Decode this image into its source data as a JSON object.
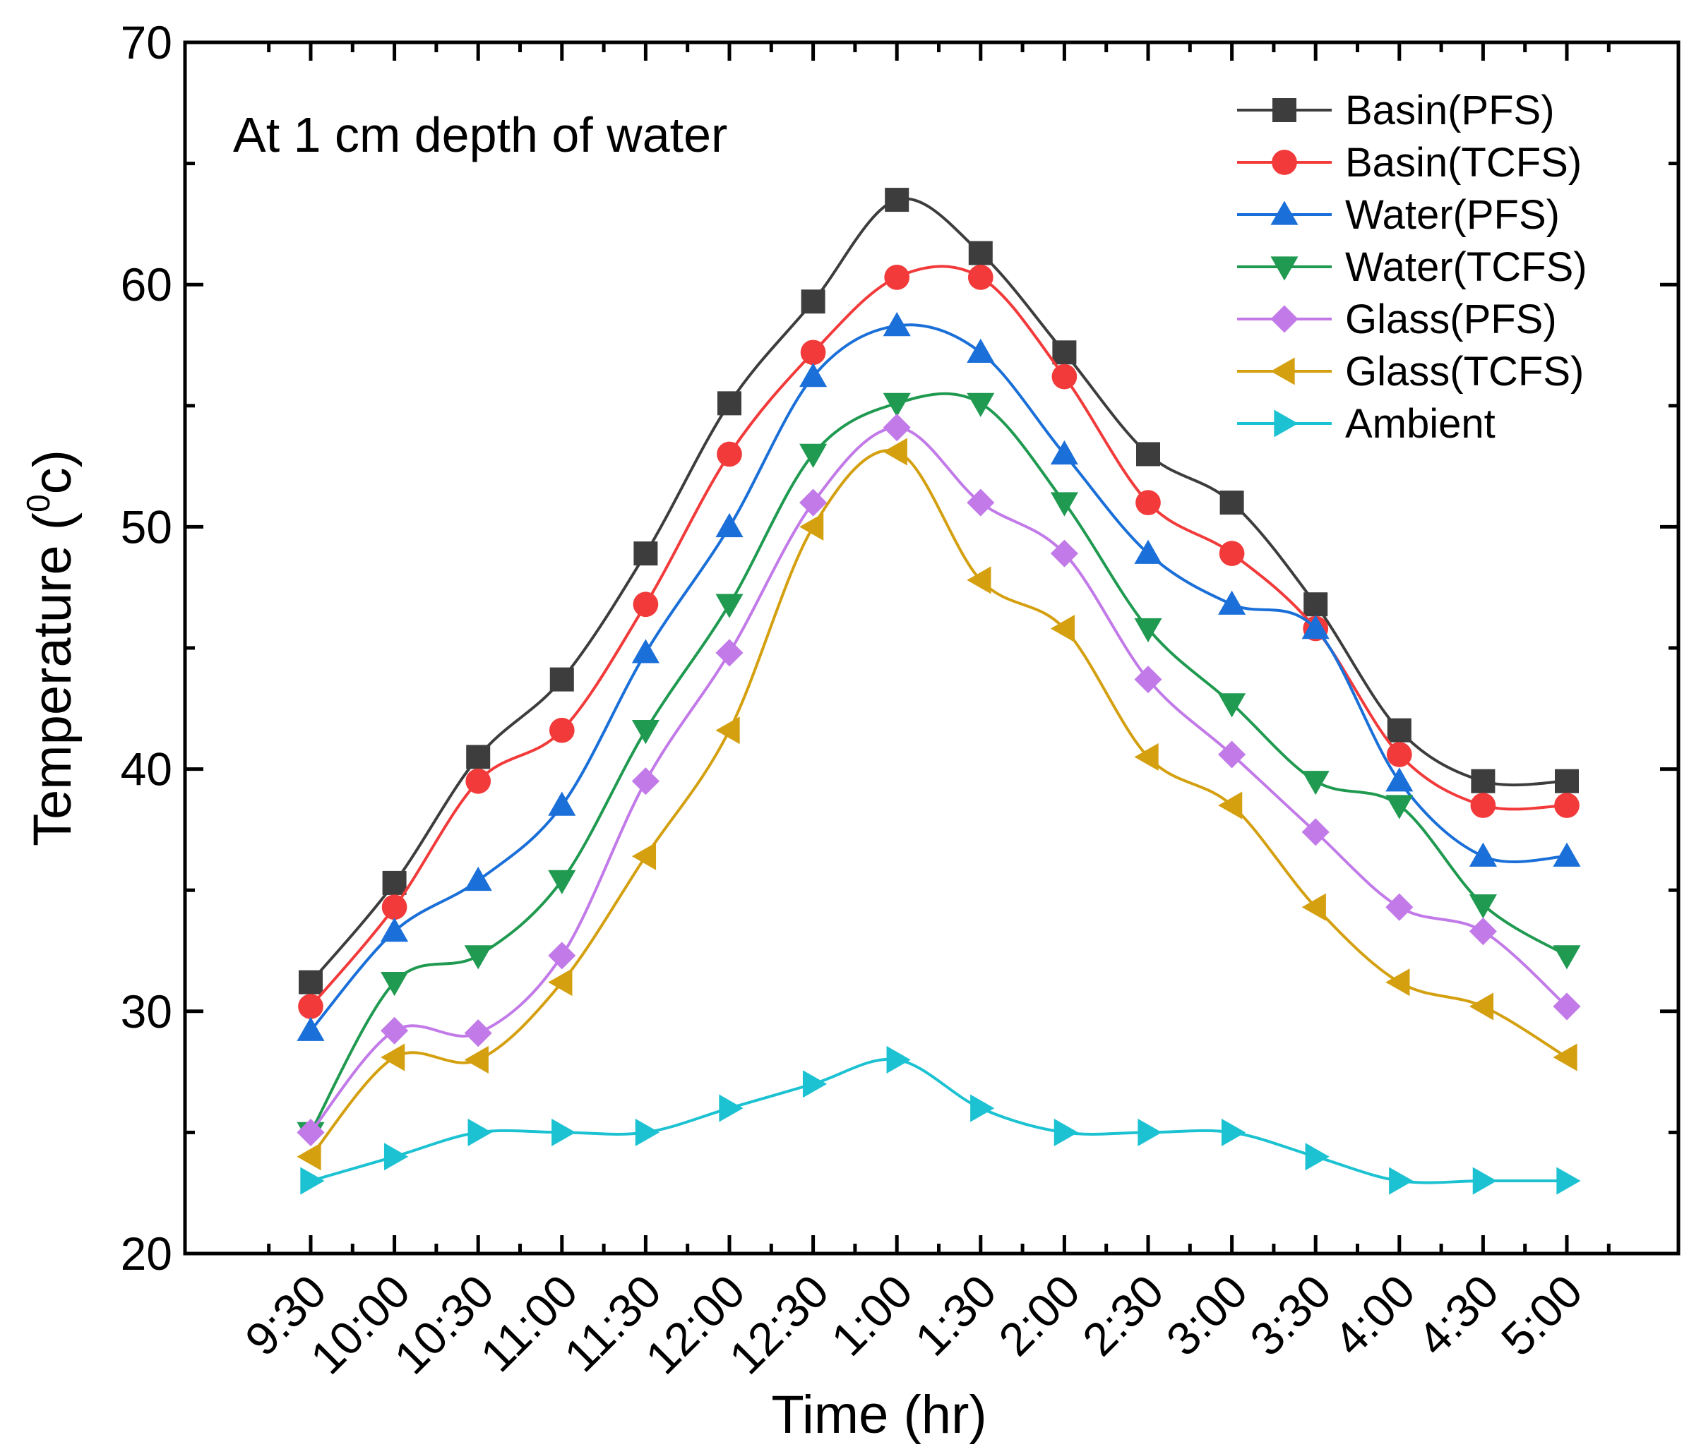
{
  "chart_data": {
    "type": "line",
    "annotation": "At 1 cm depth of water",
    "xlabel": "Time (hr)",
    "ylabel": "Temperature (",
    "ylabel_sup": "0",
    "ylabel_end": "c)",
    "ylim": [
      20,
      70
    ],
    "yticks": [
      20,
      30,
      40,
      50,
      60,
      70
    ],
    "categories": [
      "9:30",
      "10:00",
      "10:30",
      "11:00",
      "11:30",
      "12:00",
      "12:30",
      "1:00",
      "1:30",
      "2:00",
      "2:30",
      "3:00",
      "3:30",
      "4:00",
      "4:30",
      "5:00"
    ],
    "legend_position": "top-right",
    "series": [
      {
        "name": "Basin(PFS)",
        "color": "#3d3d3d",
        "marker": "square",
        "values": [
          31.2,
          35.3,
          40.5,
          43.7,
          48.9,
          55.1,
          59.3,
          63.5,
          61.3,
          57.2,
          53.0,
          51.0,
          46.8,
          41.6,
          39.5,
          39.5
        ]
      },
      {
        "name": "Basin(TCFS)",
        "color": "#f23a3a",
        "marker": "circle",
        "values": [
          30.2,
          34.3,
          39.5,
          41.6,
          46.8,
          53.0,
          57.2,
          60.3,
          60.3,
          56.2,
          51.0,
          48.9,
          45.8,
          40.6,
          38.5,
          38.5
        ]
      },
      {
        "name": "Water(PFS)",
        "color": "#1a6fd8",
        "marker": "triangle-up",
        "values": [
          29.2,
          33.3,
          35.4,
          38.5,
          44.8,
          50.0,
          56.2,
          58.3,
          57.2,
          53.0,
          48.9,
          46.8,
          45.8,
          39.5,
          36.4,
          36.4
        ]
      },
      {
        "name": "Water(TCFS)",
        "color": "#1f9a50",
        "marker": "triangle-down",
        "values": [
          25.0,
          31.2,
          32.3,
          35.4,
          41.6,
          46.8,
          53.0,
          55.1,
          55.1,
          51.0,
          45.8,
          42.7,
          39.5,
          38.5,
          34.4,
          32.3
        ]
      },
      {
        "name": "Glass(PFS)",
        "color": "#c27ae8",
        "marker": "diamond",
        "values": [
          25.0,
          29.2,
          29.1,
          32.3,
          39.5,
          44.8,
          51.0,
          54.1,
          51.0,
          48.9,
          43.7,
          40.6,
          37.4,
          34.3,
          33.3,
          30.2
        ]
      },
      {
        "name": "Glass(TCFS)",
        "color": "#d4a010",
        "marker": "triangle-left",
        "values": [
          24.0,
          28.1,
          28.0,
          31.2,
          36.4,
          41.6,
          50.0,
          53.1,
          47.8,
          45.8,
          40.5,
          38.5,
          34.3,
          31.2,
          30.2,
          28.1
        ]
      },
      {
        "name": "Ambient",
        "color": "#1cc2d2",
        "marker": "triangle-right",
        "values": [
          23.0,
          24.0,
          25.0,
          25.0,
          25.0,
          26.0,
          27.0,
          28.0,
          26.0,
          25.0,
          25.0,
          25.0,
          24.0,
          23.0,
          23.0,
          23.0
        ]
      }
    ]
  }
}
